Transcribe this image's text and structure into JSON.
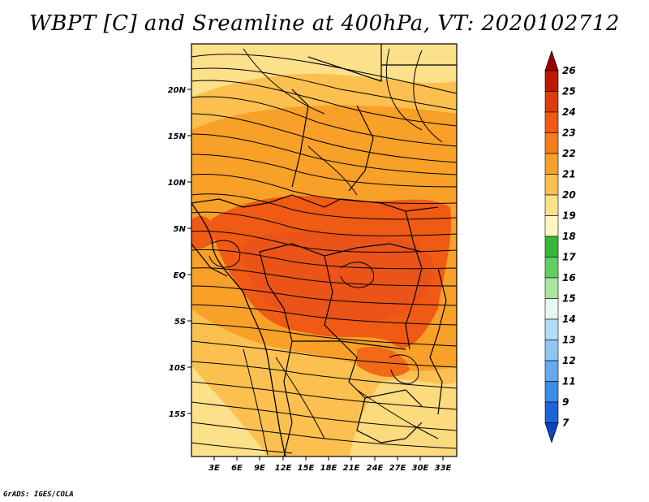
{
  "title": "WBPT [C] and Sreamline at 400hPa, VT: 2020102712",
  "credit": "GrADS: IGES/COLA",
  "map": {
    "lat_labels": [
      "20N",
      "15N",
      "10N",
      "5N",
      "EQ",
      "5S",
      "10S",
      "15S"
    ],
    "lon_labels": [
      "3E",
      "6E",
      "9E",
      "12E",
      "15E",
      "18E",
      "21E",
      "24E",
      "27E",
      "30E",
      "33E"
    ],
    "lon_range": [
      0,
      34.5
    ],
    "lat_range": [
      -20,
      24.5
    ]
  },
  "colorbar": {
    "levels": [
      "26",
      "25",
      "24",
      "23",
      "22",
      "21",
      "20",
      "19",
      "18",
      "17",
      "16",
      "15",
      "14",
      "13",
      "12",
      "11",
      "9",
      "7"
    ],
    "colors": [
      "#a00000",
      "#c01800",
      "#e03a10",
      "#f05a14",
      "#f57d1b",
      "#f9a028",
      "#fbc050",
      "#fde08a",
      "#fff6c0",
      "#38b838",
      "#5fd05f",
      "#a8e6a0",
      "#e6f8f0",
      "#b4dcf8",
      "#8ec6f6",
      "#64aaf0",
      "#3c8ce8",
      "#1e64d8",
      "#0a46c0"
    ]
  }
}
